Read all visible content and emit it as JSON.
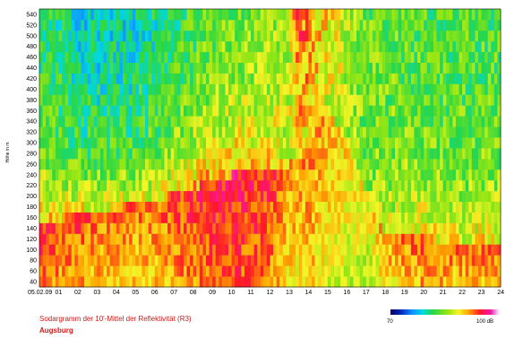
{
  "chart_data": {
    "type": "heatmap",
    "title": "Sodargramm der 10'-Mittel der Reflektivität (R3)",
    "subtitle": "Augsburg",
    "ylabel": "Höhe in m",
    "xlim": [
      0,
      24
    ],
    "ylim": [
      40,
      540
    ],
    "x_tick_labels": [
      "05.02.09",
      "01",
      "02",
      "03",
      "04",
      "05",
      "06",
      "07",
      "08",
      "09",
      "10",
      "11",
      "12",
      "13",
      "14",
      "15",
      "16",
      "17",
      "18",
      "19",
      "20",
      "21",
      "22",
      "23",
      "24"
    ],
    "y_ticks": [
      40,
      60,
      80,
      100,
      120,
      140,
      160,
      180,
      200,
      220,
      240,
      260,
      280,
      300,
      320,
      340,
      360,
      380,
      400,
      420,
      440,
      460,
      480,
      500,
      520,
      540
    ],
    "colorbar": {
      "min_label": "70",
      "max_label": "100 dB",
      "range": [
        70,
        100
      ]
    },
    "z_description": "Reflectivity (dB) by hour (x) and height in m (y); grid of 10-minute means",
    "x_hours": [
      0,
      2,
      4,
      6,
      8,
      10,
      12,
      13,
      13.5,
      14,
      15,
      16,
      17,
      18,
      20,
      22,
      24
    ],
    "red_layer_top_m": [
      150,
      165,
      180,
      195,
      215,
      240,
      250,
      260,
      275,
      300,
      360,
      300,
      210,
      130,
      120,
      110,
      110
    ],
    "z_upper_dB": [
      82,
      79,
      79,
      80,
      83,
      84,
      85,
      87,
      94,
      92,
      90,
      87,
      84,
      84,
      83,
      83,
      83
    ],
    "z_lower_dB": [
      95,
      94,
      93,
      93,
      95,
      96,
      95,
      92,
      92,
      93,
      91,
      90,
      89,
      92,
      94,
      93,
      94
    ]
  }
}
